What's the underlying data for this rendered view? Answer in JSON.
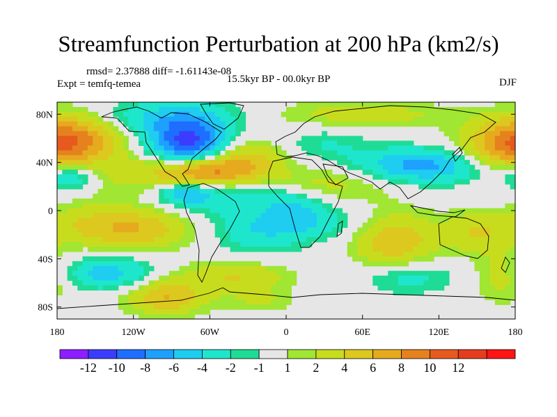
{
  "chart_data": {
    "type": "heatmap",
    "title": "Streamfunction Perturbation at 200 hPa (km2/s)",
    "stats_text": "rmsd= 2.37888 diff= -1.61143e-08",
    "experiment_text": "Expt = temfq-temea",
    "period_text": "15.5kyr BP - 00.0kyr BP",
    "season": "DJF",
    "x_range": [
      -180,
      180
    ],
    "y_range": [
      -90,
      90
    ],
    "x_ticks": [
      {
        "value": -180,
        "label": "180"
      },
      {
        "value": -120,
        "label": "120W"
      },
      {
        "value": -60,
        "label": "60W"
      },
      {
        "value": 0,
        "label": "0"
      },
      {
        "value": 60,
        "label": "60E"
      },
      {
        "value": 120,
        "label": "120E"
      },
      {
        "value": 180,
        "label": "180"
      }
    ],
    "y_ticks": [
      {
        "value": 80,
        "label": "80N"
      },
      {
        "value": 40,
        "label": "40N"
      },
      {
        "value": 0,
        "label": "0"
      },
      {
        "value": -40,
        "label": "40S"
      },
      {
        "value": -80,
        "label": "80S"
      }
    ],
    "colorbar": {
      "colors": [
        "#8c1eff",
        "#3c3cff",
        "#1e6eff",
        "#1ea0ff",
        "#1ecdf0",
        "#1ee6cd",
        "#1edc96",
        "#e6e6e6",
        "#a0e632",
        "#c8dc1e",
        "#dcc81e",
        "#e6aa1e",
        "#e6821e",
        "#e65a1e",
        "#e63c1e",
        "#ff1414"
      ],
      "labels": [
        "-12",
        "-10",
        "-8",
        "-6",
        "-4",
        "-2",
        "-1",
        "1",
        "2",
        "4",
        "6",
        "8",
        "10",
        "12"
      ],
      "boundaries": [
        -12,
        -10,
        -8,
        -6,
        -4,
        -2,
        -1,
        1,
        2,
        4,
        6,
        8,
        10,
        12
      ]
    },
    "field_centers": [
      {
        "lon": -77,
        "lat": 56,
        "value": -11,
        "sigma_lon": 22,
        "sigma_lat": 14
      },
      {
        "lon": -95,
        "lat": 78,
        "value": -4,
        "sigma_lon": 40,
        "sigma_lat": 10
      },
      {
        "lon": -65,
        "lat": 33,
        "value": 9,
        "sigma_lon": 28,
        "sigma_lat": 9
      },
      {
        "lon": -30,
        "lat": 45,
        "value": 4,
        "sigma_lon": 20,
        "sigma_lat": 12
      },
      {
        "lon": -165,
        "lat": 60,
        "value": 7,
        "sigma_lon": 25,
        "sigma_lat": 15
      },
      {
        "lon": -170,
        "lat": 28,
        "value": -5,
        "sigma_lon": 14,
        "sigma_lat": 8
      },
      {
        "lon": -120,
        "lat": 30,
        "value": 2,
        "sigma_lon": 35,
        "sigma_lat": 15
      },
      {
        "lon": -60,
        "lat": 10,
        "value": -3,
        "sigma_lon": 30,
        "sigma_lat": 10
      },
      {
        "lon": -80,
        "lat": 15,
        "value": -5,
        "sigma_lon": 14,
        "sigma_lat": 6
      },
      {
        "lon": -120,
        "lat": -15,
        "value": 6,
        "sigma_lon": 30,
        "sigma_lat": 12
      },
      {
        "lon": -160,
        "lat": -10,
        "value": 2,
        "sigma_lon": 20,
        "sigma_lat": 12
      },
      {
        "lon": -20,
        "lat": -15,
        "value": -4,
        "sigma_lon": 25,
        "sigma_lat": 14
      },
      {
        "lon": 10,
        "lat": -5,
        "value": -3,
        "sigma_lon": 15,
        "sigma_lat": 10
      },
      {
        "lon": -140,
        "lat": -52,
        "value": -5,
        "sigma_lon": 25,
        "sigma_lat": 10
      },
      {
        "lon": -40,
        "lat": -55,
        "value": 4,
        "sigma_lon": 30,
        "sigma_lat": 9
      },
      {
        "lon": -95,
        "lat": -72,
        "value": 6,
        "sigma_lon": 22,
        "sigma_lat": 10
      },
      {
        "lon": -20,
        "lat": -75,
        "value": 2,
        "sigma_lon": 20,
        "sigma_lat": 7
      },
      {
        "lon": 60,
        "lat": 80,
        "value": 3,
        "sigma_lon": 50,
        "sigma_lat": 8
      },
      {
        "lon": 30,
        "lat": 55,
        "value": -2,
        "sigma_lon": 25,
        "sigma_lat": 10
      },
      {
        "lon": 40,
        "lat": 25,
        "value": 3,
        "sigma_lon": 35,
        "sigma_lat": 12
      },
      {
        "lon": 105,
        "lat": 37,
        "value": -7,
        "sigma_lon": 40,
        "sigma_lat": 10
      },
      {
        "lon": 170,
        "lat": 52,
        "value": 6,
        "sigma_lon": 25,
        "sigma_lat": 15
      },
      {
        "lon": 40,
        "lat": -10,
        "value": -2,
        "sigma_lon": 25,
        "sigma_lat": 10
      },
      {
        "lon": 85,
        "lat": -25,
        "value": 6,
        "sigma_lon": 22,
        "sigma_lat": 16
      },
      {
        "lon": 150,
        "lat": -18,
        "value": 4,
        "sigma_lon": 20,
        "sigma_lat": 12
      },
      {
        "lon": 95,
        "lat": -55,
        "value": -3,
        "sigma_lon": 25,
        "sigma_lat": 10
      },
      {
        "lon": 170,
        "lat": -55,
        "value": 3,
        "sigma_lon": 15,
        "sigma_lat": 15
      },
      {
        "lon": 0,
        "lat": 10,
        "value": -2,
        "sigma_lon": 20,
        "sigma_lat": 8
      }
    ]
  }
}
